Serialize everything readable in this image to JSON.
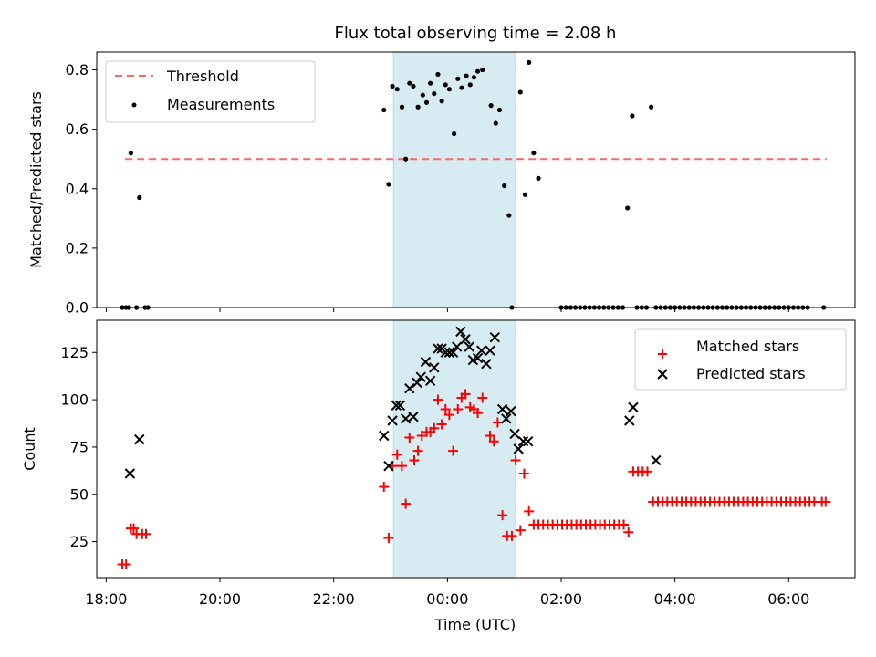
{
  "chart_data": [
    {
      "type": "scatter",
      "title": "Flux total observing time = 2.08 h",
      "ylabel": "Matched/Predicted stars",
      "xlabel": "",
      "x_unit": "hours relative to 00:00 UTC",
      "xlim": [
        "17:50",
        "07:10"
      ],
      "ylim": [
        0,
        0.86
      ],
      "yticks": [
        "0.0",
        "0.2",
        "0.4",
        "0.6",
        "0.8"
      ],
      "shaded_interval": [
        "23:03",
        "01:12"
      ],
      "shaded_color": "#add8e6",
      "legend_position": "top-left",
      "series": [
        {
          "name": "Threshold",
          "kind": "dashed-line",
          "color": "#ff6666",
          "x": [
            "18:20",
            "06:40"
          ],
          "y": [
            0.5,
            0.5
          ]
        },
        {
          "name": "Measurements",
          "kind": "dot",
          "color": "#000000",
          "points": [
            [
              "18:17",
              0
            ],
            [
              "18:21",
              0
            ],
            [
              "18:24",
              0
            ],
            [
              "18:26",
              0.52
            ],
            [
              "18:32",
              0
            ],
            [
              "18:35",
              0.37
            ],
            [
              "18:41",
              0
            ],
            [
              "18:44",
              0
            ],
            [
              "22:53",
              0.665
            ],
            [
              "22:58",
              0.415
            ],
            [
              "23:02",
              0.745
            ],
            [
              "23:07",
              0.735
            ],
            [
              "23:12",
              0.675
            ],
            [
              "23:16",
              0.5
            ],
            [
              "23:20",
              0.755
            ],
            [
              "23:24",
              0.745
            ],
            [
              "23:29",
              0.675
            ],
            [
              "23:34",
              0.715
            ],
            [
              "23:38",
              0.69
            ],
            [
              "23:42",
              0.755
            ],
            [
              "23:46",
              0.72
            ],
            [
              "23:50",
              0.785
            ],
            [
              "23:54",
              0.695
            ],
            [
              "23:58",
              0.75
            ],
            [
              "00:02",
              0.735
            ],
            [
              "00:07",
              0.585
            ],
            [
              "00:11",
              0.77
            ],
            [
              "00:15",
              0.74
            ],
            [
              "00:20",
              0.78
            ],
            [
              "00:24",
              0.75
            ],
            [
              "00:28",
              0.775
            ],
            [
              "00:32",
              0.795
            ],
            [
              "00:37",
              0.8
            ],
            [
              "00:46",
              0.68
            ],
            [
              "00:51",
              0.62
            ],
            [
              "00:55",
              0.665
            ],
            [
              "01:00",
              0.41
            ],
            [
              "01:05",
              0.31
            ],
            [
              "01:08",
              0
            ],
            [
              "01:17",
              0.725
            ],
            [
              "01:22",
              0.38
            ],
            [
              "01:26",
              0.825
            ],
            [
              "01:31",
              0.52
            ],
            [
              "01:36",
              0.435
            ],
            [
              "02:00",
              0
            ],
            [
              "02:05",
              0
            ],
            [
              "02:10",
              0
            ],
            [
              "02:15",
              0
            ],
            [
              "02:20",
              0
            ],
            [
              "02:25",
              0
            ],
            [
              "02:30",
              0
            ],
            [
              "02:35",
              0
            ],
            [
              "02:40",
              0
            ],
            [
              "02:45",
              0
            ],
            [
              "02:50",
              0
            ],
            [
              "02:55",
              0
            ],
            [
              "03:00",
              0
            ],
            [
              "03:05",
              0
            ],
            [
              "03:10",
              0.335
            ],
            [
              "03:15",
              0.645
            ],
            [
              "03:20",
              0
            ],
            [
              "03:25",
              0
            ],
            [
              "03:30",
              0
            ],
            [
              "03:35",
              0.675
            ],
            [
              "03:40",
              0
            ],
            [
              "03:45",
              0
            ],
            [
              "03:50",
              0
            ],
            [
              "03:55",
              0
            ],
            [
              "04:00",
              0
            ],
            [
              "04:05",
              0
            ],
            [
              "04:10",
              0
            ],
            [
              "04:15",
              0
            ],
            [
              "04:20",
              0
            ],
            [
              "04:25",
              0
            ],
            [
              "04:30",
              0
            ],
            [
              "04:35",
              0
            ],
            [
              "04:40",
              0
            ],
            [
              "04:45",
              0
            ],
            [
              "04:50",
              0
            ],
            [
              "04:55",
              0
            ],
            [
              "05:00",
              0
            ],
            [
              "05:05",
              0
            ],
            [
              "05:10",
              0
            ],
            [
              "05:15",
              0
            ],
            [
              "05:20",
              0
            ],
            [
              "05:25",
              0
            ],
            [
              "05:30",
              0
            ],
            [
              "05:35",
              0
            ],
            [
              "05:40",
              0
            ],
            [
              "05:45",
              0
            ],
            [
              "05:50",
              0
            ],
            [
              "05:55",
              0
            ],
            [
              "06:00",
              0
            ],
            [
              "06:05",
              0
            ],
            [
              "06:10",
              0
            ],
            [
              "06:15",
              0
            ],
            [
              "06:20",
              0
            ],
            [
              "06:37",
              0
            ]
          ]
        }
      ]
    },
    {
      "type": "scatter",
      "title": "",
      "ylabel": "Count",
      "xlabel": "Time (UTC)",
      "xlim": [
        "17:50",
        "07:10"
      ],
      "ylim": [
        6,
        142
      ],
      "yticks": [
        "25",
        "50",
        "75",
        "100",
        "125"
      ],
      "xticks": [
        "18:00",
        "20:00",
        "22:00",
        "00:00",
        "02:00",
        "04:00",
        "06:00"
      ],
      "shaded_interval": [
        "23:03",
        "01:12"
      ],
      "shaded_color": "#add8e6",
      "legend_position": "top-right",
      "series": [
        {
          "name": "Matched stars",
          "kind": "plus",
          "color": "#ff0000",
          "points": [
            [
              "18:17",
              13
            ],
            [
              "18:21",
              13
            ],
            [
              "18:26",
              32
            ],
            [
              "18:29",
              32
            ],
            [
              "18:32",
              29
            ],
            [
              "18:38",
              29
            ],
            [
              "18:42",
              29
            ],
            [
              "22:53",
              54
            ],
            [
              "22:58",
              27
            ],
            [
              "23:02",
              65
            ],
            [
              "23:07",
              71
            ],
            [
              "23:12",
              65
            ],
            [
              "23:16",
              45
            ],
            [
              "23:20",
              80
            ],
            [
              "23:25",
              68
            ],
            [
              "23:29",
              73
            ],
            [
              "23:33",
              81
            ],
            [
              "23:38",
              83
            ],
            [
              "23:42",
              83
            ],
            [
              "23:46",
              85
            ],
            [
              "23:50",
              100
            ],
            [
              "23:54",
              87
            ],
            [
              "23:58",
              95
            ],
            [
              "00:02",
              92
            ],
            [
              "00:06",
              73
            ],
            [
              "00:11",
              95
            ],
            [
              "00:15",
              101
            ],
            [
              "00:19",
              103
            ],
            [
              "00:24",
              96
            ],
            [
              "00:28",
              95
            ],
            [
              "00:32",
              93
            ],
            [
              "00:37",
              101
            ],
            [
              "00:45",
              81
            ],
            [
              "00:49",
              78
            ],
            [
              "00:53",
              88
            ],
            [
              "00:58",
              39
            ],
            [
              "01:03",
              28
            ],
            [
              "01:08",
              28
            ],
            [
              "01:12",
              68
            ],
            [
              "01:17",
              31
            ],
            [
              "01:21",
              61
            ],
            [
              "01:26",
              41
            ],
            [
              "01:31",
              34
            ],
            [
              "01:36",
              34
            ],
            [
              "01:41",
              34
            ],
            [
              "01:46",
              34
            ],
            [
              "01:51",
              34
            ],
            [
              "01:56",
              34
            ],
            [
              "02:01",
              34
            ],
            [
              "02:06",
              34
            ],
            [
              "02:11",
              34
            ],
            [
              "02:16",
              34
            ],
            [
              "02:21",
              34
            ],
            [
              "02:26",
              34
            ],
            [
              "02:31",
              34
            ],
            [
              "02:36",
              34
            ],
            [
              "02:41",
              34
            ],
            [
              "02:46",
              34
            ],
            [
              "02:51",
              34
            ],
            [
              "02:56",
              34
            ],
            [
              "03:01",
              34
            ],
            [
              "03:06",
              34
            ],
            [
              "03:11",
              30
            ],
            [
              "03:16",
              62
            ],
            [
              "03:21",
              62
            ],
            [
              "03:26",
              62
            ],
            [
              "03:31",
              62
            ],
            [
              "03:37",
              46
            ],
            [
              "03:42",
              46
            ],
            [
              "03:47",
              46
            ],
            [
              "03:52",
              46
            ],
            [
              "03:57",
              46
            ],
            [
              "04:02",
              46
            ],
            [
              "04:07",
              46
            ],
            [
              "04:12",
              46
            ],
            [
              "04:17",
              46
            ],
            [
              "04:22",
              46
            ],
            [
              "04:27",
              46
            ],
            [
              "04:32",
              46
            ],
            [
              "04:37",
              46
            ],
            [
              "04:42",
              46
            ],
            [
              "04:47",
              46
            ],
            [
              "04:52",
              46
            ],
            [
              "04:57",
              46
            ],
            [
              "05:02",
              46
            ],
            [
              "05:07",
              46
            ],
            [
              "05:12",
              46
            ],
            [
              "05:17",
              46
            ],
            [
              "05:22",
              46
            ],
            [
              "05:27",
              46
            ],
            [
              "05:32",
              46
            ],
            [
              "05:37",
              46
            ],
            [
              "05:42",
              46
            ],
            [
              "05:47",
              46
            ],
            [
              "05:52",
              46
            ],
            [
              "05:57",
              46
            ],
            [
              "06:02",
              46
            ],
            [
              "06:07",
              46
            ],
            [
              "06:12",
              46
            ],
            [
              "06:17",
              46
            ],
            [
              "06:22",
              46
            ],
            [
              "06:27",
              46
            ],
            [
              "06:35",
              46
            ],
            [
              "06:39",
              46
            ]
          ]
        },
        {
          "name": "Predicted stars",
          "kind": "cross",
          "color": "#000000",
          "points": [
            [
              "18:25",
              61
            ],
            [
              "18:35",
              79
            ],
            [
              "22:53",
              81
            ],
            [
              "22:58",
              65
            ],
            [
              "23:02",
              89
            ],
            [
              "23:06",
              97
            ],
            [
              "23:10",
              97
            ],
            [
              "23:16",
              90
            ],
            [
              "23:20",
              106
            ],
            [
              "23:24",
              91
            ],
            [
              "23:28",
              109
            ],
            [
              "23:32",
              112
            ],
            [
              "23:37",
              120
            ],
            [
              "23:42",
              110
            ],
            [
              "23:46",
              117
            ],
            [
              "23:50",
              127
            ],
            [
              "23:54",
              127
            ],
            [
              "23:58",
              125
            ],
            [
              "00:02",
              125
            ],
            [
              "00:06",
              125
            ],
            [
              "00:10",
              128
            ],
            [
              "00:14",
              136
            ],
            [
              "00:19",
              132
            ],
            [
              "00:23",
              128
            ],
            [
              "00:27",
              121
            ],
            [
              "00:32",
              122
            ],
            [
              "00:36",
              126
            ],
            [
              "00:41",
              119
            ],
            [
              "00:45",
              126
            ],
            [
              "00:50",
              133
            ],
            [
              "00:58",
              95
            ],
            [
              "01:02",
              90
            ],
            [
              "01:07",
              94
            ],
            [
              "01:11",
              82
            ],
            [
              "01:15",
              74
            ],
            [
              "01:20",
              78
            ],
            [
              "01:25",
              78
            ],
            [
              "03:12",
              89
            ],
            [
              "03:16",
              96
            ],
            [
              "03:40",
              68
            ]
          ]
        }
      ]
    }
  ]
}
